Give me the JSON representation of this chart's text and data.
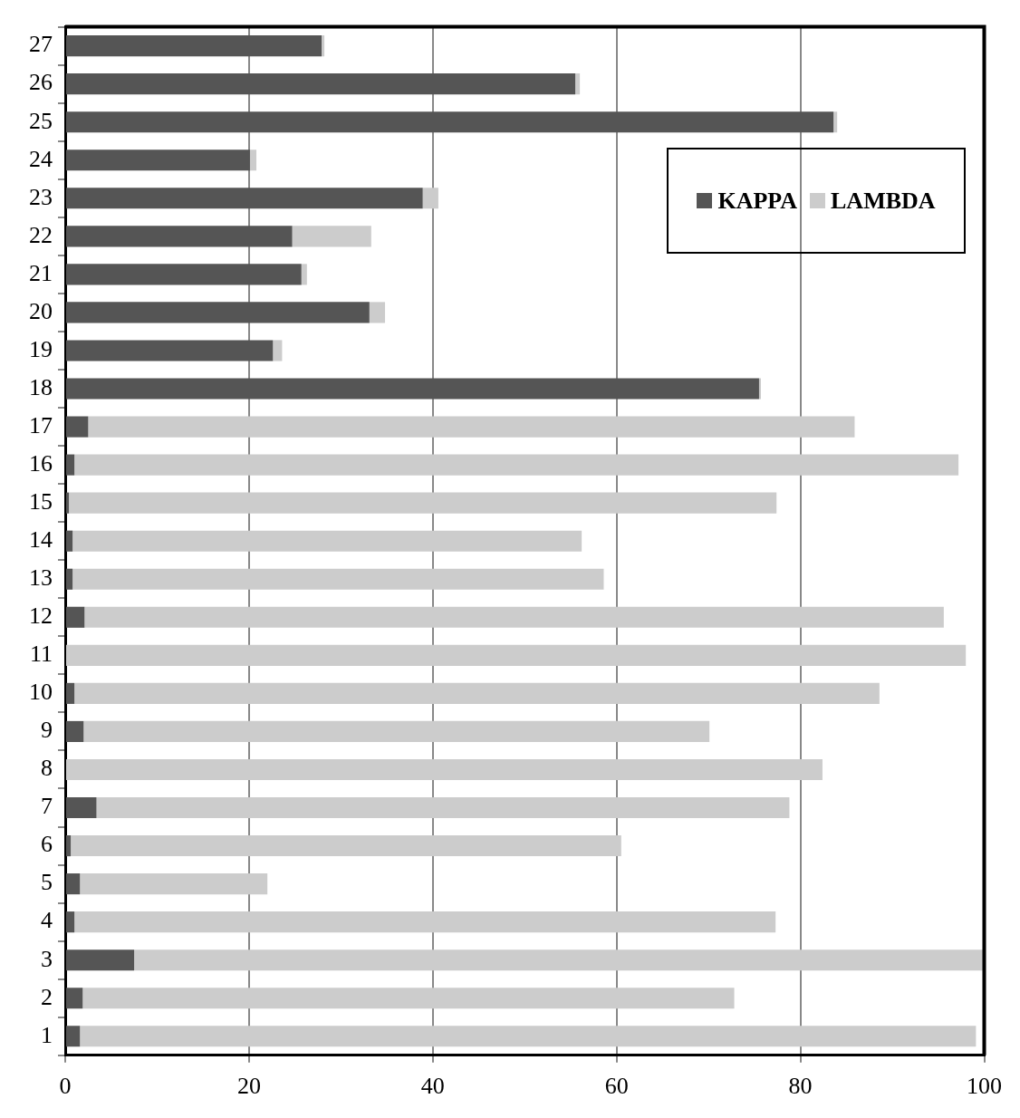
{
  "chart_data": {
    "type": "bar",
    "orientation": "horizontal",
    "stacked": true,
    "categories": [
      "27",
      "26",
      "25",
      "24",
      "23",
      "22",
      "21",
      "20",
      "19",
      "18",
      "17",
      "16",
      "15",
      "14",
      "13",
      "12",
      "11",
      "10",
      "9",
      "8",
      "7",
      "6",
      "5",
      "4",
      "3",
      "2",
      "1"
    ],
    "series": [
      {
        "name": "KAPPA",
        "color": "#555555",
        "values": [
          27.9,
          55.5,
          83.6,
          20.1,
          38.9,
          24.7,
          25.7,
          33.1,
          22.6,
          75.5,
          2.5,
          1.0,
          0.4,
          0.8,
          0.8,
          2.1,
          0,
          1.0,
          2.0,
          0,
          3.4,
          0.6,
          1.6,
          1.0,
          7.5,
          1.9,
          1.6
        ]
      },
      {
        "name": "LAMBDA",
        "color": "#cccccc",
        "values": [
          0.3,
          0.5,
          0.4,
          0.7,
          1.7,
          8.6,
          0.6,
          1.7,
          1.0,
          0.2,
          83.4,
          96.2,
          77.0,
          55.4,
          57.8,
          93.5,
          98.0,
          87.6,
          68.1,
          82.4,
          75.4,
          59.9,
          20.4,
          76.3,
          92.5,
          70.9,
          97.5
        ]
      }
    ],
    "xlim": [
      0,
      100
    ],
    "xticks": [
      0,
      20,
      40,
      60,
      80,
      100
    ],
    "grid": "x",
    "legend": "top right"
  }
}
